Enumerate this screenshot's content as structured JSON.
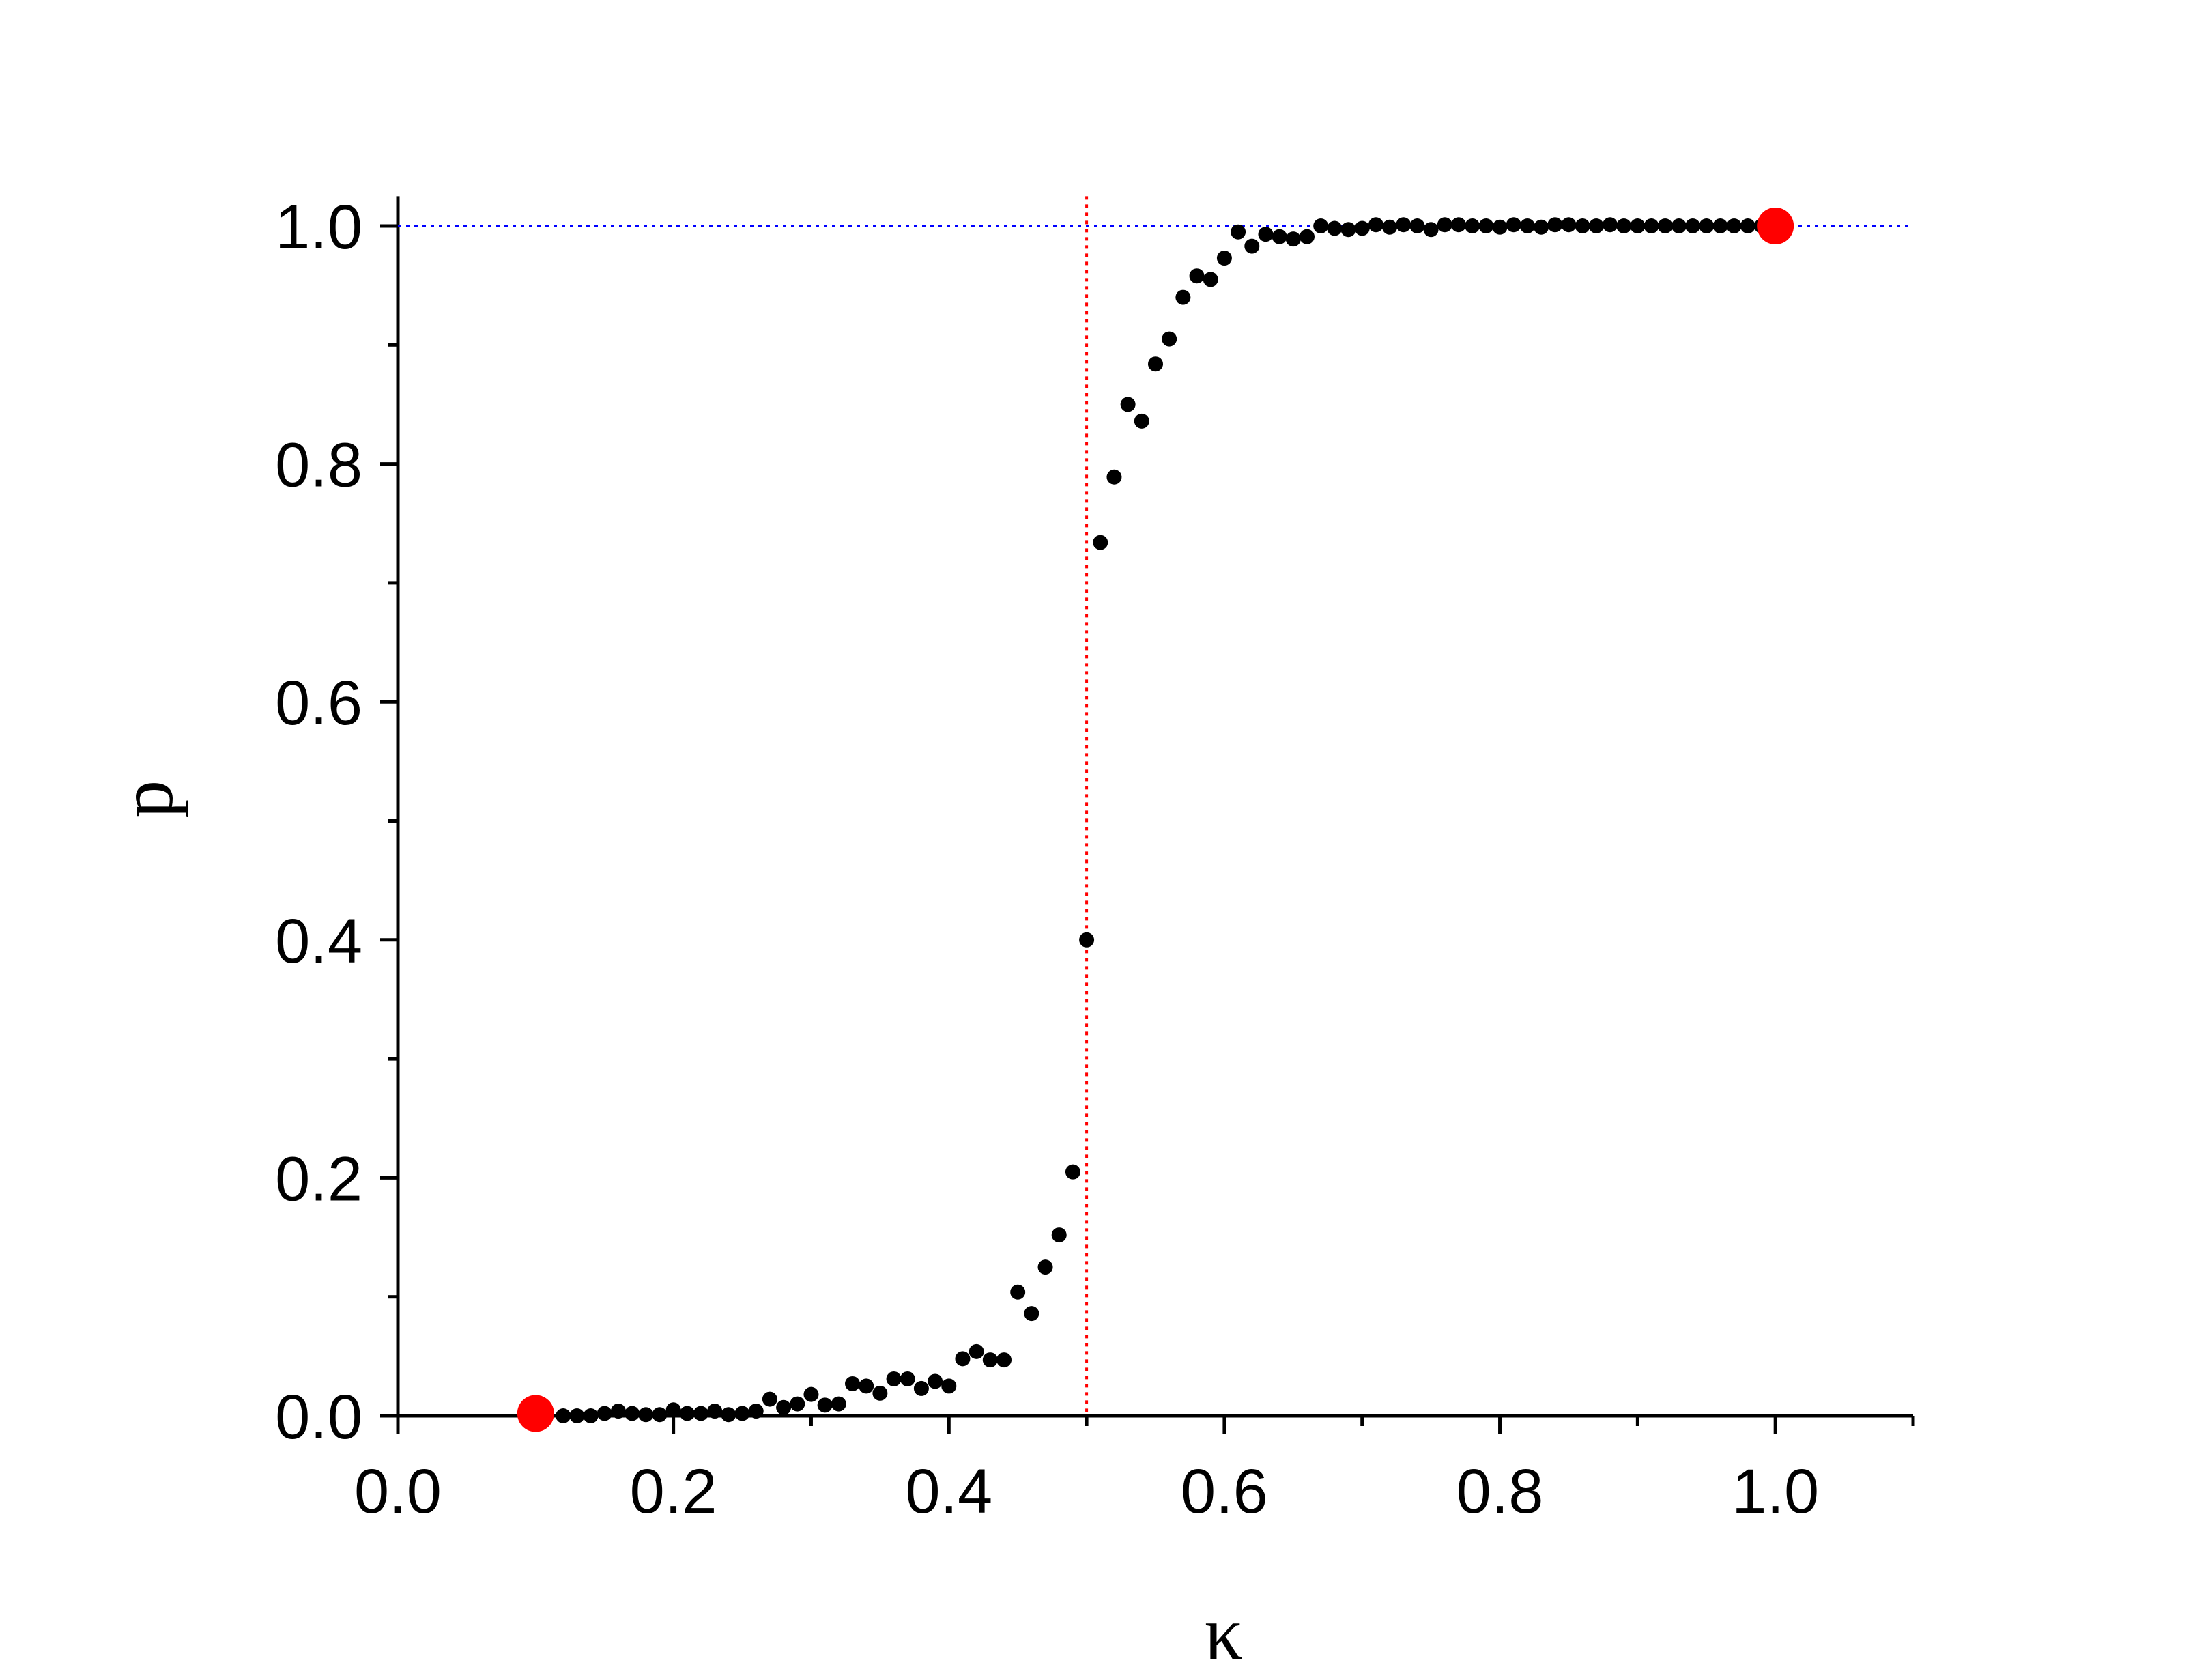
{
  "chart_data": {
    "type": "scatter",
    "title": "",
    "xlabel": "κ",
    "ylabel": "p",
    "xlim": [
      0.0,
      1.1
    ],
    "ylim": [
      0.0,
      1.025
    ],
    "x_ticks": [
      "0.0",
      "0.2",
      "0.4",
      "0.6",
      "0.8",
      "1.0"
    ],
    "y_ticks": [
      "0.0",
      "0.2",
      "0.4",
      "0.6",
      "0.8",
      "1.0"
    ],
    "grid": false,
    "legend": "none",
    "colors": {
      "points": "#000000",
      "highlight": "#ff0000",
      "hline": "#0000ff",
      "vline": "#ff0000"
    },
    "reference_lines": {
      "horizontal_y": 1.0,
      "vertical_x": 0.5
    },
    "series": [
      {
        "marker": "small-dot",
        "x": [
          0.12,
          0.13,
          0.14,
          0.15,
          0.16,
          0.17,
          0.18,
          0.19,
          0.2,
          0.21,
          0.22,
          0.23,
          0.24,
          0.25,
          0.26,
          0.27,
          0.28,
          0.29,
          0.3,
          0.31,
          0.32,
          0.33,
          0.34,
          0.35,
          0.36,
          0.37,
          0.38,
          0.39,
          0.4,
          0.41,
          0.42,
          0.43,
          0.44,
          0.45,
          0.46,
          0.47,
          0.48,
          0.49,
          0.5,
          0.51,
          0.52,
          0.53,
          0.54,
          0.55,
          0.56,
          0.57,
          0.58,
          0.59,
          0.6,
          0.61,
          0.62,
          0.63,
          0.64,
          0.65,
          0.66,
          0.67,
          0.68,
          0.69,
          0.7,
          0.71,
          0.72,
          0.73,
          0.74,
          0.75,
          0.76,
          0.77,
          0.78,
          0.79,
          0.8,
          0.81,
          0.82,
          0.83,
          0.84,
          0.85,
          0.86,
          0.87,
          0.88,
          0.89,
          0.9,
          0.91,
          0.92,
          0.93,
          0.94,
          0.95,
          0.96,
          0.97,
          0.98,
          0.99
        ],
        "y": [
          0.0,
          0.0,
          0.0,
          0.002,
          0.004,
          0.002,
          0.001,
          0.001,
          0.005,
          0.002,
          0.002,
          0.004,
          0.001,
          0.002,
          0.004,
          0.014,
          0.007,
          0.01,
          0.018,
          0.009,
          0.01,
          0.027,
          0.025,
          0.019,
          0.031,
          0.031,
          0.023,
          0.029,
          0.025,
          0.048,
          0.054,
          0.047,
          0.047,
          0.104,
          0.086,
          0.125,
          0.152,
          0.205,
          0.4,
          0.734,
          0.789,
          0.85,
          0.836,
          0.884,
          0.905,
          0.94,
          0.958,
          0.955,
          0.973,
          0.995,
          0.983,
          0.993,
          0.991,
          0.989,
          0.991,
          1.0,
          0.998,
          0.997,
          0.998,
          1.001,
          0.999,
          1.001,
          1.0,
          0.997,
          1.001,
          1.001,
          1.0,
          1.0,
          0.999,
          1.001,
          1.0,
          0.999,
          1.001,
          1.001,
          1.0,
          1.0,
          1.001,
          1.0,
          1.0,
          1.0,
          1.0,
          1.0,
          1.0,
          1.0,
          1.0,
          1.0,
          1.0,
          1.0
        ]
      },
      {
        "marker": "large-dot",
        "x": [
          0.1,
          1.0
        ],
        "y": [
          0.002,
          1.0
        ]
      }
    ]
  }
}
